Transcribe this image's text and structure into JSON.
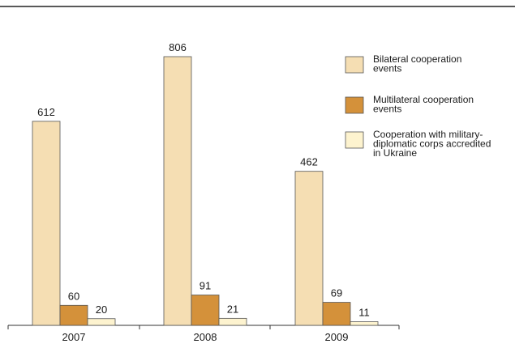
{
  "chart_data": {
    "type": "bar",
    "categories": [
      "2007",
      "2008",
      "2009"
    ],
    "series": [
      {
        "name": "Bilateral cooperation events",
        "values": [
          612,
          806,
          462
        ],
        "color": "#f5deb3"
      },
      {
        "name": "Multilateral cooperation events",
        "values": [
          60,
          91,
          69
        ],
        "color": "#d4913a"
      },
      {
        "name": "Cooperation with military-diplomatic corps accredited in Ukraine",
        "values": [
          20,
          21,
          11
        ],
        "color": "#fdf3cf"
      }
    ],
    "legend_lines": [
      [
        "Bilateral cooperation",
        "events"
      ],
      [
        "Multilateral cooperation",
        "events"
      ],
      [
        "Cooperation with military-",
        "diplomatic corps accredited",
        "in Ukraine"
      ]
    ],
    "ylim": [
      0,
      806
    ],
    "show_data_labels": true,
    "grid": false,
    "legend_position": "top-right"
  }
}
